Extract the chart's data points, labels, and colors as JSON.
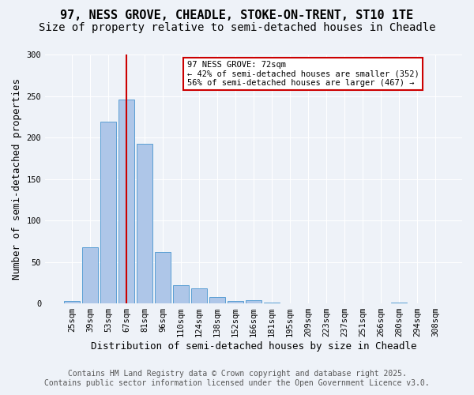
{
  "title_line1": "97, NESS GROVE, CHEADLE, STOKE-ON-TRENT, ST10 1TE",
  "title_line2": "Size of property relative to semi-detached houses in Cheadle",
  "xlabel": "Distribution of semi-detached houses by size in Cheadle",
  "ylabel": "Number of semi-detached properties",
  "bins": [
    "25sqm",
    "39sqm",
    "53sqm",
    "67sqm",
    "81sqm",
    "96sqm",
    "110sqm",
    "124sqm",
    "138sqm",
    "152sqm",
    "166sqm",
    "181sqm",
    "195sqm",
    "209sqm",
    "223sqm",
    "237sqm",
    "251sqm",
    "266sqm",
    "280sqm",
    "294sqm",
    "308sqm"
  ],
  "bar_values": [
    3,
    68,
    219,
    246,
    192,
    62,
    22,
    18,
    8,
    3,
    4,
    1,
    0,
    0,
    0,
    0,
    0,
    0,
    1,
    0,
    0
  ],
  "bar_color": "#aec6e8",
  "bar_edge_color": "#5a9fd4",
  "red_line_x": 3.0,
  "annotation_title": "97 NESS GROVE: 72sqm",
  "annotation_line2": "← 42% of semi-detached houses are smaller (352)",
  "annotation_line3": "56% of semi-detached houses are larger (467) →",
  "annotation_box_color": "#ffffff",
  "annotation_box_edge": "#cc0000",
  "red_line_color": "#cc0000",
  "ylim": [
    0,
    300
  ],
  "yticks": [
    0,
    50,
    100,
    150,
    200,
    250,
    300
  ],
  "footnote_line1": "Contains HM Land Registry data © Crown copyright and database right 2025.",
  "footnote_line2": "Contains public sector information licensed under the Open Government Licence v3.0.",
  "background_color": "#eef2f8",
  "plot_background": "#eef2f8",
  "title_fontsize": 11,
  "subtitle_fontsize": 10,
  "axis_fontsize": 9,
  "tick_fontsize": 7.5,
  "footnote_fontsize": 7
}
